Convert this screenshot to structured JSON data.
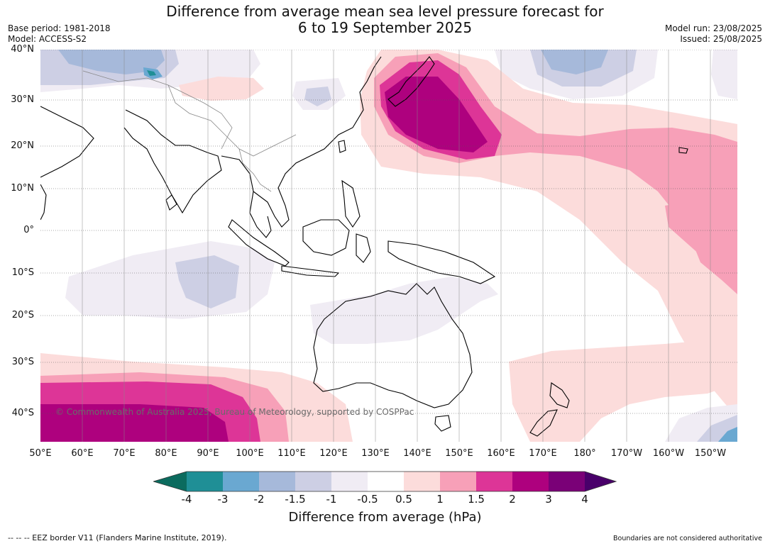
{
  "title": {
    "line1": "Difference from average mean sea level pressure forecast for",
    "line2": "6 to 19 September 2025"
  },
  "meta_left": {
    "base_period": "Base period: 1981-2018",
    "model": "Model: ACCESS-S2"
  },
  "meta_right": {
    "model_run": "Model run: 23/08/2025",
    "issued": "Issued: 25/08/2025"
  },
  "map": {
    "lat_labels": [
      "40°N",
      "30°N",
      "20°N",
      "10°N",
      "0°",
      "10°S",
      "20°S",
      "30°S",
      "40°S"
    ],
    "lon_labels": [
      "50°E",
      "60°E",
      "70°E",
      "80°E",
      "90°E",
      "100°E",
      "110°E",
      "120°E",
      "130°E",
      "140°E",
      "150°E",
      "160°E",
      "170°E",
      "180°",
      "170°W",
      "160°W",
      "150°W"
    ],
    "copyright": "© Commonwealth of Australia 2025, Bureau of Meteorology, supported by COSPPac"
  },
  "colorbar": {
    "ticks": [
      "-4",
      "-3",
      "-2",
      "-1.5",
      "-1",
      "-0.5",
      "0.5",
      "1",
      "1.5",
      "2",
      "3",
      "4"
    ],
    "colors": {
      "under": "#0b6b5e",
      "bins": [
        "#1f8f96",
        "#6aa8d1",
        "#a6b9da",
        "#cdcfe4",
        "#f0ecf4",
        "#ffffff",
        "#fcdcdb",
        "#f7a0b8",
        "#dd3597",
        "#ae017e",
        "#7a0177"
      ],
      "over": "#49006a"
    },
    "title": "Difference from average (hPa)"
  },
  "footer": {
    "legend_line": "--  --  -- EEZ border V11 (Flanders Marine Institute, 2019).",
    "disclaimer": "Boundaries are not considered authoritative"
  }
}
